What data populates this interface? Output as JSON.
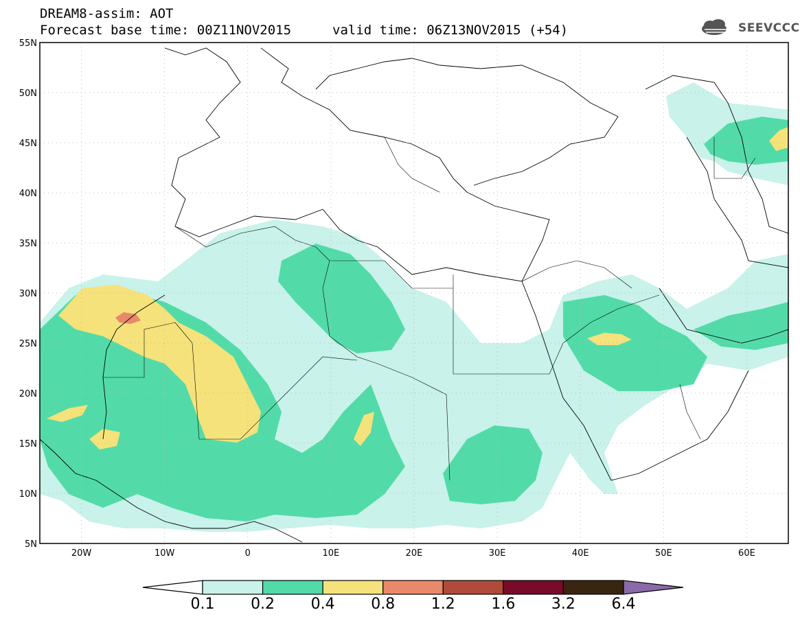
{
  "header": {
    "title": "DREAM8-assim: AOT",
    "base_time": "Forecast base time: 00Z11NOV2015",
    "valid_time": "valid time: 06Z13NOV2015 (+54)",
    "logo_text": "SEEVCCC",
    "logo_icon": "cloud-icon"
  },
  "map": {
    "lat_labels": [
      "55N",
      "50N",
      "45N",
      "40N",
      "35N",
      "30N",
      "25N",
      "20N",
      "15N",
      "10N",
      "5N"
    ],
    "lon_labels": [
      "20W",
      "10W",
      "0",
      "10E",
      "20E",
      "30E",
      "40E",
      "50E",
      "60E"
    ],
    "lat_range": [
      5,
      55
    ],
    "lon_range": [
      -25,
      65
    ],
    "grid": true
  },
  "colorbar": {
    "labels": [
      "0.1",
      "0.2",
      "0.4",
      "0.8",
      "1.2",
      "1.6",
      "3.2",
      "6.4"
    ],
    "colors": [
      "#c8f2ea",
      "#52dba8",
      "#f5e27a",
      "#e8896a",
      "#b04a3a",
      "#7a0a2a",
      "#3a2510",
      "#8a6aa8"
    ]
  }
}
